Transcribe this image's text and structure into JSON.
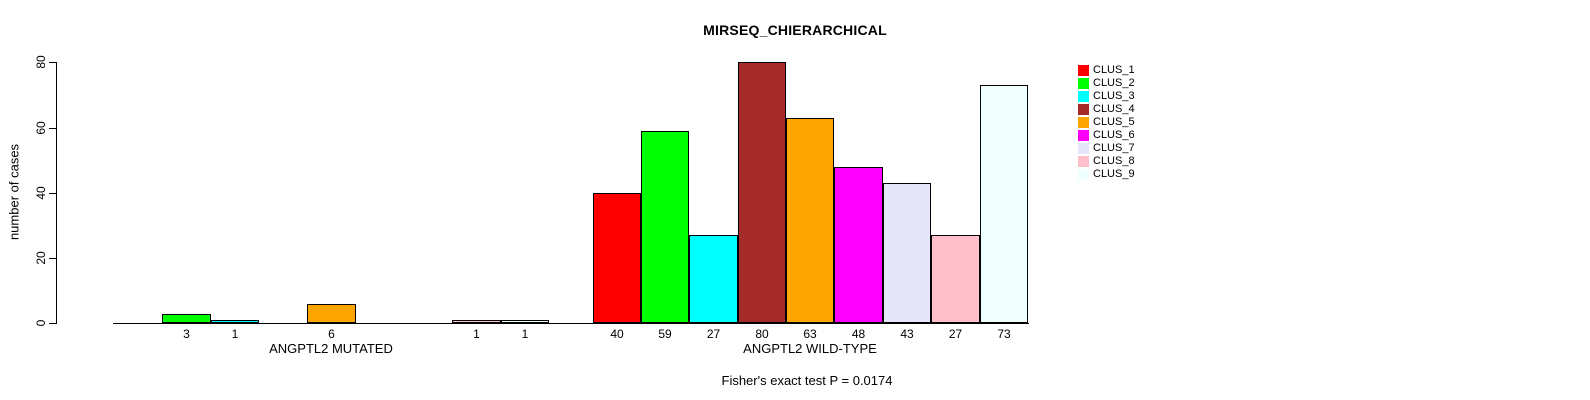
{
  "chart_data": {
    "type": "bar",
    "title": "MIRSEQ_CHIERARCHICAL",
    "ylabel": "number of cases",
    "xlabel": "",
    "ylim": [
      0,
      80
    ],
    "yticks": [
      0,
      20,
      40,
      60,
      80
    ],
    "grid": false,
    "legend_position": "right",
    "bar_value_labels": true,
    "hide_zero_bars": true,
    "categories": [
      "ANGPTL2 MUTATED",
      "ANGPTL2 WILD-TYPE"
    ],
    "series": [
      {
        "name": "CLUS_1",
        "color": "#FF0000",
        "values": [
          0,
          40
        ]
      },
      {
        "name": "CLUS_2",
        "color": "#00FF00",
        "values": [
          3,
          59
        ]
      },
      {
        "name": "CLUS_3",
        "color": "#00FFFF",
        "values": [
          1,
          27
        ]
      },
      {
        "name": "CLUS_4",
        "color": "#A52A2A",
        "values": [
          0,
          80
        ]
      },
      {
        "name": "CLUS_5",
        "color": "#FFA500",
        "values": [
          6,
          63
        ]
      },
      {
        "name": "CLUS_6",
        "color": "#FF00FF",
        "values": [
          0,
          48
        ]
      },
      {
        "name": "CLUS_7",
        "color": "#E6E6FA",
        "values": [
          0,
          43
        ]
      },
      {
        "name": "CLUS_8",
        "color": "#FFC0CB",
        "values": [
          1,
          27
        ]
      },
      {
        "name": "CLUS_9",
        "color": "#F0FFFF",
        "values": [
          1,
          73
        ]
      }
    ],
    "annotation": "Fisher's exact test P = 0.0174"
  }
}
